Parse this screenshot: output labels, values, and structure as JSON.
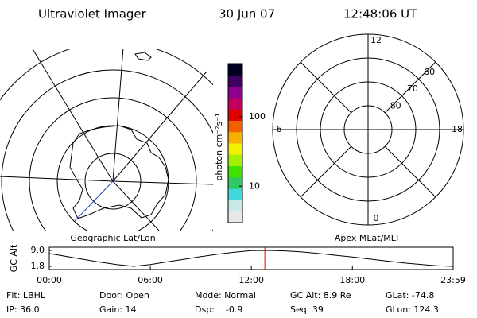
{
  "header": {
    "title": "Ultraviolet Imager",
    "date": "30 Jun 07",
    "time": "12:48:06 UT"
  },
  "colorbar": {
    "label": "photon cm⁻²s⁻¹",
    "log": true,
    "range": [
      3,
      580
    ],
    "ticks": [
      10,
      100
    ],
    "colors": [
      "#e8e8e8",
      "#c8e8e8",
      "#40d8d8",
      "#30c860",
      "#40e000",
      "#a0f000",
      "#f0f000",
      "#f8b000",
      "#f06000",
      "#e00000",
      "#c00060",
      "#900090",
      "#400060",
      "#000020"
    ]
  },
  "left_panel": {
    "label": "Geographic Lat/Lon"
  },
  "right_panel": {
    "label": "Apex MLat/MLT",
    "lat_labels": [
      80,
      70,
      60
    ],
    "mlt_labels": [
      12,
      6,
      0,
      18
    ]
  },
  "altitude_plot": {
    "ylabel": "GC Alt",
    "ylim": [
      1.8,
      9.0
    ],
    "yticks": [
      {
        "value": 9.0,
        "label": "9.0"
      },
      {
        "value": 1.8,
        "label": "1.8"
      }
    ],
    "xlim": [
      0,
      23.983
    ],
    "xticks": [
      {
        "value": 0,
        "label": "00:00"
      },
      {
        "value": 6,
        "label": "06:00"
      },
      {
        "value": 12,
        "label": "12:00"
      },
      {
        "value": 18,
        "label": "18:00"
      },
      {
        "value": 23.983,
        "label": "23:59"
      }
    ],
    "x": [
      0,
      1,
      2,
      3,
      4,
      5,
      6,
      7,
      8,
      9,
      10,
      11,
      12,
      13,
      14,
      15,
      16,
      17,
      18,
      19,
      20,
      21,
      22,
      23,
      23.983
    ],
    "values": [
      7.6,
      6.3,
      5.0,
      3.7,
      2.6,
      1.8,
      2.6,
      3.8,
      5.0,
      6.2,
      7.3,
      8.2,
      8.9,
      9.0,
      8.8,
      8.3,
      7.6,
      6.8,
      6.0,
      5.1,
      4.2,
      3.4,
      2.7,
      2.1,
      1.8
    ],
    "color": "#000000",
    "current_time": 12.8,
    "marker_color": "#e00000"
  },
  "footer": {
    "rows": [
      [
        "Flt: LBHL",
        "Door: Open",
        "Mode: Normal",
        "GC Alt: 8.9 Re",
        "GLat: -74.8"
      ],
      [
        "IP: 36.0",
        "Gain: 14",
        "Dsp:    -0.9",
        "Seq: 39",
        "GLon: 124.3"
      ]
    ]
  }
}
